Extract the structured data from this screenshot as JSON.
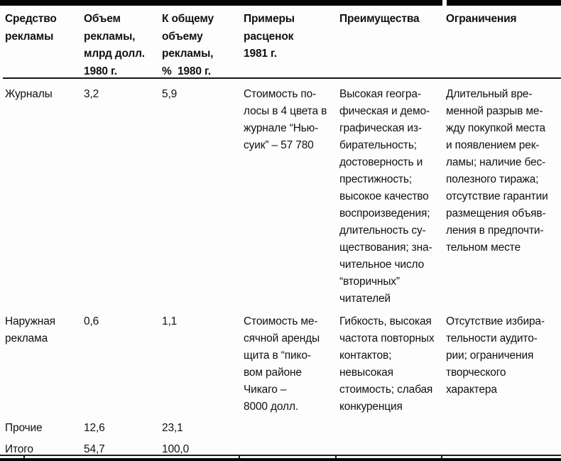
{
  "page": {
    "background_color": "#fdfdfd",
    "ink_color": "#111111",
    "rule_color": "#050505"
  },
  "table": {
    "columns": [
      {
        "label": "Средство\nрекламы"
      },
      {
        "label": "Объем\nрекламы,\nмлрд долл.\n1980 г."
      },
      {
        "label": "К общему\nобъему\nрекламы,\n%  1980 г."
      },
      {
        "label": "Примеры\nрасценок\n1981 г."
      },
      {
        "label": "Преимущества"
      },
      {
        "label": "Ограничения"
      }
    ],
    "rows": [
      {
        "medium": "Журналы",
        "volume_1980": "3,2",
        "share_pct_1980": "5,9",
        "rates_1981": "Стоимость по-\nлосы в 4 цвета в\nжурнале “Нью-\nсуик” – 57 780",
        "advantages": "Высокая геогра-\nфическая и демо-\nграфическая из-\nбирательность;\nдостоверность и\nпрестижность;\nвысокое качество\nвоспроизведения;\nдлительность су-\nществования; зна-\nчительное число\n“вторичных”\nчитателей",
        "limitations": "Длительный вре-\nменной разрыв ме-\nжду покупкой места\nи появлением рек-\nламы; наличие бес-\nполезного тиража;\nотсутствие гарантии\nразмещения объяв-\nления в предпочти-\nтельном месте"
      },
      {
        "medium": "Наружная\nреклама",
        "volume_1980": "0,6",
        "share_pct_1980": "1,1",
        "rates_1981": "Стоимость ме-\nсячной аренды\nщита в “пико-\nвом районе\nЧикаго –\n8000 долл.",
        "advantages": "Гибкость, высокая\nчастота повторных\nконтактов;\nневысокая\nстоимость; слабая\nконкуренция",
        "limitations": "Отсутствие избира-\nтельности аудито-\nрии; ограничения\nтворческого\nхарактера"
      },
      {
        "medium": "Прочие",
        "volume_1980": "12,6",
        "share_pct_1980": "23,1",
        "rates_1981": "",
        "advantages": "",
        "limitations": ""
      },
      {
        "medium": "Итого",
        "volume_1980": "54,7",
        "share_pct_1980": "100,0",
        "rates_1981": "",
        "advantages": "",
        "limitations": ""
      }
    ]
  }
}
